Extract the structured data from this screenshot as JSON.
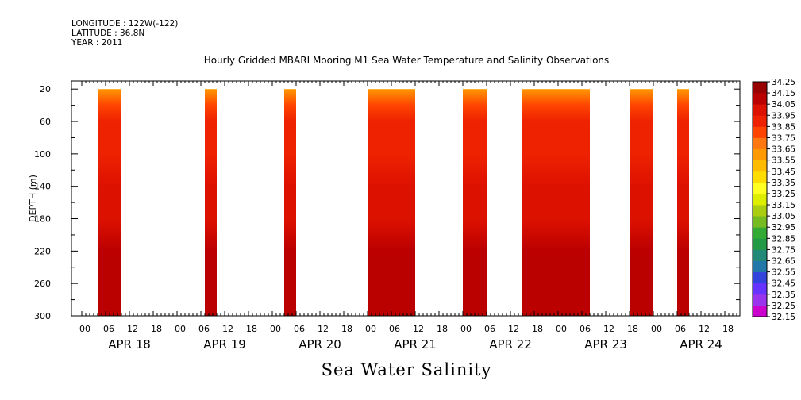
{
  "header": {
    "longitude": "LONGITUDE : 122W(-122)",
    "latitude": "LATITUDE : 36.8N",
    "year": "YEAR : 2011",
    "title": "Hourly Gridded MBARI Mooring M1 Sea Water Temperature and Salinity Observations"
  },
  "bottom_title": "Sea Water Salinity",
  "colors": {
    "scale": [
      "#cc00cc",
      "#9933ee",
      "#6633ff",
      "#3344dd",
      "#2277aa",
      "#228877",
      "#229944",
      "#33aa33",
      "#77bb22",
      "#aacc11",
      "#ddee00",
      "#ffff22",
      "#ffdd00",
      "#ffbb00",
      "#ff9900",
      "#ff7711",
      "#ff4400",
      "#ee2200",
      "#dd1100",
      "#bb0000",
      "#990000"
    ]
  },
  "chart_data": {
    "type": "heatmap",
    "ylabel": "DEPTH (m)",
    "ylim": [
      300,
      10
    ],
    "y_ticks": [
      20,
      60,
      100,
      140,
      180,
      220,
      260,
      300
    ],
    "x_hour_ticks": [
      "00",
      "06",
      "12",
      "18",
      "00",
      "06",
      "12",
      "18",
      "00",
      "06",
      "12",
      "18",
      "00",
      "06",
      "12",
      "18",
      "00",
      "06",
      "12",
      "18",
      "00",
      "06",
      "12",
      "18",
      "00",
      "06",
      "12",
      "18"
    ],
    "x_day_labels": [
      "APR 18",
      "APR 19",
      "APR 20",
      "APR 21",
      "APR 22",
      "APR 23",
      "APR 24"
    ],
    "colorbar_levels": [
      "34.25",
      "34.15",
      "34.05",
      "33.95",
      "33.85",
      "33.75",
      "33.65",
      "33.55",
      "33.45",
      "33.35",
      "33.25",
      "33.15",
      "33.05",
      "32.95",
      "32.85",
      "32.75",
      "32.65",
      "32.55",
      "32.45",
      "32.35",
      "32.25",
      "32.15"
    ],
    "data_segments": [
      {
        "start": "APR 18 04:00",
        "end": "APR 18 10:00"
      },
      {
        "start": "APR 19 07:00",
        "end": "APR 19 10:00"
      },
      {
        "start": "APR 20 03:00",
        "end": "APR 20 06:00"
      },
      {
        "start": "APR 21 00:00",
        "end": "APR 21 12:00"
      },
      {
        "start": "APR 22 00:00",
        "end": "APR 22 06:00"
      },
      {
        "start": "APR 22 15:00",
        "end": "APR 23 08:00"
      },
      {
        "start": "APR 23 18:00",
        "end": "APR 24 00:00"
      },
      {
        "start": "APR 24 06:00",
        "end": "APR 24 09:00"
      }
    ],
    "salinity_profile": [
      {
        "depth": 20,
        "value": 33.6
      },
      {
        "depth": 40,
        "value": 33.8
      },
      {
        "depth": 60,
        "value": 33.88
      },
      {
        "depth": 100,
        "value": 33.93
      },
      {
        "depth": 140,
        "value": 34.0
      },
      {
        "depth": 180,
        "value": 34.02
      },
      {
        "depth": 220,
        "value": 34.07
      },
      {
        "depth": 260,
        "value": 34.15
      },
      {
        "depth": 300,
        "value": 34.12
      }
    ]
  }
}
